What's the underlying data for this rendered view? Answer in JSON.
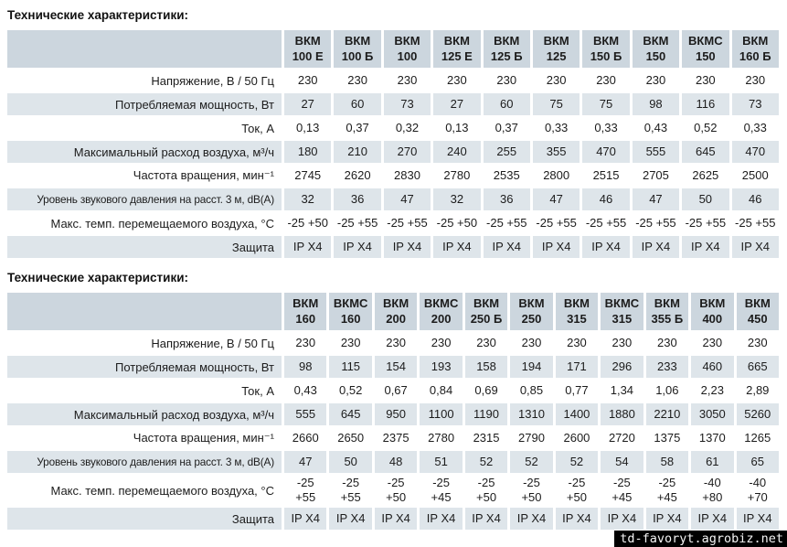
{
  "page": {
    "watermark": "td-favoryt.agrobiz.net"
  },
  "colors": {
    "header_cell": "#ccd6de",
    "stripe_row": "#dee5ea",
    "text": "#1c1c1c",
    "watermark_bg": "#000000",
    "watermark_text": "#f5f5f5"
  },
  "tables": [
    {
      "title": "Технические характеристики:",
      "models": [
        "ВКМ\n100 Е",
        "ВКМ\n100 Б",
        "ВКМ\n100",
        "ВКМ\n125 Е",
        "ВКМ\n125 Б",
        "ВКМ\n125",
        "ВКМ\n150 Б",
        "ВКМ\n150",
        "ВКМС\n150",
        "ВКМ\n160 Б"
      ],
      "rows": [
        {
          "label": "Напряжение, В / 50 Гц",
          "values": [
            "230",
            "230",
            "230",
            "230",
            "230",
            "230",
            "230",
            "230",
            "230",
            "230"
          ]
        },
        {
          "label": "Потребляемая мощность, Вт",
          "values": [
            "27",
            "60",
            "73",
            "27",
            "60",
            "75",
            "75",
            "98",
            "116",
            "73"
          ]
        },
        {
          "label": "Ток, А",
          "values": [
            "0,13",
            "0,37",
            "0,32",
            "0,13",
            "0,37",
            "0,33",
            "0,33",
            "0,43",
            "0,52",
            "0,33"
          ]
        },
        {
          "label": "Максимальный расход воздуха, м³/ч",
          "values": [
            "180",
            "210",
            "270",
            "240",
            "255",
            "355",
            "470",
            "555",
            "645",
            "470"
          ]
        },
        {
          "label": "Частота вращения,  мин⁻¹",
          "values": [
            "2745",
            "2620",
            "2830",
            "2780",
            "2535",
            "2800",
            "2515",
            "2705",
            "2625",
            "2500"
          ]
        },
        {
          "label": "Уровень звукового давления на расст. 3 м, dB(A)",
          "values": [
            "32",
            "36",
            "47",
            "32",
            "36",
            "47",
            "46",
            "47",
            "50",
            "46"
          ]
        },
        {
          "label": "Макс. темп. перемещаемого воздуха, °С",
          "values": [
            "-25 +50",
            "-25 +55",
            "-25 +55",
            "-25 +50",
            "-25 +55",
            "-25 +55",
            "-25 +55",
            "-25 +55",
            "-25 +55",
            "-25 +55"
          ]
        },
        {
          "label": "Защита",
          "values": [
            "IP X4",
            "IP X4",
            "IP X4",
            "IP X4",
            "IP X4",
            "IP X4",
            "IP X4",
            "IP X4",
            "IP X4",
            "IP X4"
          ]
        }
      ]
    },
    {
      "title": "Технические характеристики:",
      "models": [
        "ВКМ\n160",
        "ВКМС\n160",
        "ВКМ\n200",
        "ВКМС\n200",
        "ВКМ\n250 Б",
        "ВКМ\n250",
        "ВКМ\n315",
        "ВКМС\n315",
        "ВКМ\n355 Б",
        "ВКМ\n400",
        "ВКМ\n450"
      ],
      "rows": [
        {
          "label": "Напряжение, В / 50 Гц",
          "values": [
            "230",
            "230",
            "230",
            "230",
            "230",
            "230",
            "230",
            "230",
            "230",
            "230",
            "230"
          ]
        },
        {
          "label": "Потребляемая мощность, Вт",
          "values": [
            "98",
            "115",
            "154",
            "193",
            "158",
            "194",
            "171",
            "296",
            "233",
            "460",
            "665"
          ]
        },
        {
          "label": "Ток, А",
          "values": [
            "0,43",
            "0,52",
            "0,67",
            "0,84",
            "0,69",
            "0,85",
            "0,77",
            "1,34",
            "1,06",
            "2,23",
            "2,89"
          ]
        },
        {
          "label": "Максимальный расход воздуха, м³/ч",
          "values": [
            "555",
            "645",
            "950",
            "1100",
            "1190",
            "1310",
            "1400",
            "1880",
            "2210",
            "3050",
            "5260"
          ]
        },
        {
          "label": "Частота вращения,  мин⁻¹",
          "values": [
            "2660",
            "2650",
            "2375",
            "2780",
            "2315",
            "2790",
            "2600",
            "2720",
            "1375",
            "1370",
            "1265"
          ]
        },
        {
          "label": "Уровень звукового давления на расст. 3 м, dB(A)",
          "values": [
            "47",
            "50",
            "48",
            "51",
            "52",
            "52",
            "52",
            "54",
            "58",
            "61",
            "65"
          ]
        },
        {
          "label": "Макс. темп. перемещаемого воздуха, °С",
          "values": [
            "-25\n+55",
            "-25\n+55",
            "-25\n+50",
            "-25\n+45",
            "-25\n+50",
            "-25\n+50",
            "-25\n+50",
            "-25\n+45",
            "-25\n+45",
            "-40\n+80",
            "-40\n+70"
          ]
        },
        {
          "label": "Защита",
          "values": [
            "IP X4",
            "IP X4",
            "IP X4",
            "IP X4",
            "IP X4",
            "IP X4",
            "IP X4",
            "IP X4",
            "IP X4",
            "IP X4",
            "IP X4"
          ]
        }
      ]
    }
  ]
}
